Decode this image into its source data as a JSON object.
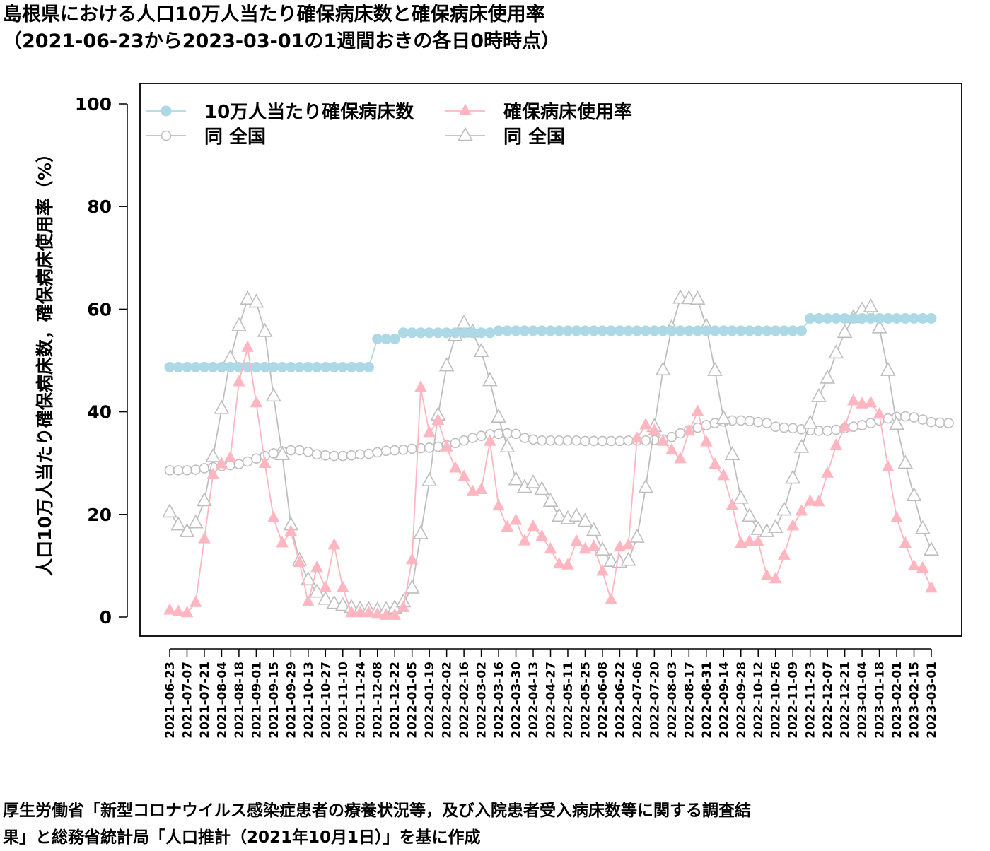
{
  "title": {
    "line1": "島根県における人口10万人当たり確保病床数と確保病床使用率",
    "line2": "（2021-06-23から2023-03-01の1週間おきの各日0時時点）"
  },
  "footer": {
    "line1": "厚生労働省「新型コロナウイルス感染症患者の療養状況等，及び入院患者受入病床数等に関する調査結",
    "line2": "果」と総務省統計局「人口推計（2021年10月1日）」を基に作成"
  },
  "chart_data": {
    "type": "line",
    "ylabel": "人口10万人当たり確保病床数，確保病床使用率（%）",
    "ylim": [
      0,
      100
    ],
    "yticks": [
      0,
      20,
      40,
      60,
      80,
      100
    ],
    "grid": false,
    "legend_position": "top-left",
    "x_start": "2021-06-23",
    "x_step_days": 7,
    "x_tick_labels": [
      "2021-06-23",
      "2021-07-07",
      "2021-07-21",
      "2021-08-04",
      "2021-08-18",
      "2021-09-01",
      "2021-09-15",
      "2021-09-29",
      "2021-10-13",
      "2021-10-27",
      "2021-11-10",
      "2021-11-24",
      "2021-12-08",
      "2021-12-22",
      "2022-01-05",
      "2022-01-19",
      "2022-02-02",
      "2022-02-16",
      "2022-03-02",
      "2022-03-16",
      "2022-03-30",
      "2022-04-13",
      "2022-04-27",
      "2022-05-11",
      "2022-05-25",
      "2022-06-08",
      "2022-06-22",
      "2022-07-06",
      "2022-07-20",
      "2022-08-03",
      "2022-08-17",
      "2022-08-31",
      "2022-09-14",
      "2022-09-28",
      "2022-10-12",
      "2022-10-26",
      "2022-11-09",
      "2022-11-23",
      "2022-12-07",
      "2022-12-21",
      "2023-01-04",
      "2023-01-18",
      "2023-02-01",
      "2023-02-15",
      "2023-03-01"
    ],
    "series": [
      {
        "name": "10万人当たり確保病床数",
        "color": "#add8e6",
        "marker": "filled-circle",
        "values": [
          48.7,
          48.7,
          48.7,
          48.7,
          48.7,
          48.7,
          48.7,
          48.7,
          48.7,
          48.7,
          48.7,
          48.7,
          48.7,
          48.7,
          48.7,
          48.7,
          48.7,
          48.7,
          48.7,
          48.7,
          48.7,
          48.7,
          48.7,
          48.7,
          54.2,
          54.2,
          54.2,
          55.4,
          55.4,
          55.4,
          55.4,
          55.4,
          55.4,
          55.4,
          55.4,
          55.4,
          55.4,
          55.4,
          55.8,
          55.8,
          55.8,
          55.8,
          55.8,
          55.8,
          55.8,
          55.8,
          55.8,
          55.8,
          55.8,
          55.8,
          55.8,
          55.8,
          55.8,
          55.8,
          55.8,
          55.8,
          55.8,
          55.8,
          55.8,
          55.8,
          55.8,
          55.8,
          55.8,
          55.8,
          55.8,
          55.8,
          55.8,
          55.8,
          55.8,
          55.8,
          55.8,
          55.8,
          55.8,
          55.8,
          58.2,
          58.2,
          58.2,
          58.2,
          58.2,
          58.2,
          58.2,
          58.2,
          58.2,
          58.2,
          58.2,
          58.2,
          58.2,
          58.2,
          58.2
        ]
      },
      {
        "name": "同 全国",
        "color": "#bebebe",
        "marker": "open-circle",
        "values": [
          28.6,
          28.6,
          28.6,
          28.7,
          29.0,
          29.2,
          29.4,
          29.6,
          29.8,
          30.3,
          30.9,
          31.4,
          31.9,
          32.3,
          32.5,
          32.5,
          32.2,
          31.7,
          31.5,
          31.4,
          31.4,
          31.5,
          31.7,
          31.8,
          32.1,
          32.4,
          32.5,
          32.6,
          32.8,
          32.9,
          33.0,
          33.2,
          33.5,
          33.9,
          34.4,
          34.9,
          35.3,
          35.6,
          35.7,
          35.8,
          35.7,
          34.9,
          34.6,
          34.4,
          34.4,
          34.4,
          34.4,
          34.4,
          34.3,
          34.3,
          34.3,
          34.3,
          34.3,
          34.4,
          34.4,
          34.4,
          34.5,
          34.6,
          35.1,
          35.8,
          36.4,
          36.9,
          37.4,
          37.8,
          38.1,
          38.3,
          38.3,
          38.2,
          38.0,
          37.8,
          37.1,
          36.9,
          36.8,
          36.6,
          36.4,
          36.3,
          36.3,
          36.5,
          36.8,
          37.1,
          37.4,
          37.8,
          38.3,
          38.7,
          39.0,
          39.1,
          38.9,
          38.5,
          38.0,
          37.9,
          37.8
        ]
      },
      {
        "name": "確保病床使用率",
        "color": "#ffb6c1",
        "marker": "filled-triangle",
        "values": [
          1.3,
          1.0,
          0.8,
          2.8,
          15.2,
          27.7,
          29.8,
          31.0,
          45.8,
          52.5,
          41.7,
          29.9,
          19.3,
          14.4,
          16.6,
          10.6,
          2.9,
          9.6,
          5.7,
          14.0,
          5.7,
          0.8,
          0.8,
          0.8,
          0.5,
          0.3,
          0.3,
          1.8,
          11.1,
          44.7,
          35.9,
          38.3,
          33.1,
          29.0,
          27.3,
          24.4,
          24.8,
          34.2,
          21.6,
          17.5,
          18.8,
          14.8,
          17.6,
          15.7,
          13.2,
          10.3,
          10.1,
          14.7,
          13.2,
          13.7,
          8.9,
          3.3,
          13.6,
          14.0,
          34.8,
          37.4,
          36.3,
          34.2,
          32.5,
          30.8,
          36.2,
          40.0,
          34.1,
          29.7,
          27.5,
          21.7,
          14.3,
          14.7,
          14.6,
          8.0,
          7.4,
          12.0,
          17.7,
          20.6,
          22.5,
          22.4,
          28.0,
          33.4,
          37.0,
          42.1,
          41.5,
          41.7,
          39.5,
          29.2,
          19.3,
          14.3,
          9.9,
          9.5,
          5.6
        ]
      },
      {
        "name": "同 全国",
        "color": "#bebebe",
        "marker": "open-triangle",
        "values": [
          20.4,
          17.9,
          16.6,
          18.3,
          22.6,
          31.2,
          40.6,
          50.4,
          56.7,
          61.9,
          61.3,
          55.6,
          43.0,
          31.6,
          17.9,
          11.0,
          7.2,
          4.8,
          3.4,
          2.6,
          2.2,
          1.8,
          1.5,
          1.4,
          1.3,
          1.4,
          1.7,
          2.9,
          5.6,
          16.2,
          26.5,
          39.3,
          48.9,
          54.8,
          57.2,
          55.5,
          51.7,
          46.0,
          38.9,
          33.1,
          26.7,
          25.2,
          26.1,
          24.8,
          22.5,
          19.6,
          19.1,
          19.6,
          18.6,
          16.8,
          13.0,
          10.8,
          10.6,
          11.0,
          15.5,
          25.2,
          37.1,
          48.1,
          56.3,
          62.1,
          62.0,
          61.9,
          56.6,
          48.0,
          38.6,
          31.6,
          23.1,
          19.6,
          17.0,
          16.6,
          17.4,
          20.8,
          27.0,
          33.0,
          37.7,
          42.9,
          46.5,
          51.4,
          55.4,
          58.3,
          59.8,
          60.4,
          56.3,
          48.0,
          37.5,
          29.9,
          23.6,
          17.2,
          13.0
        ]
      }
    ]
  }
}
